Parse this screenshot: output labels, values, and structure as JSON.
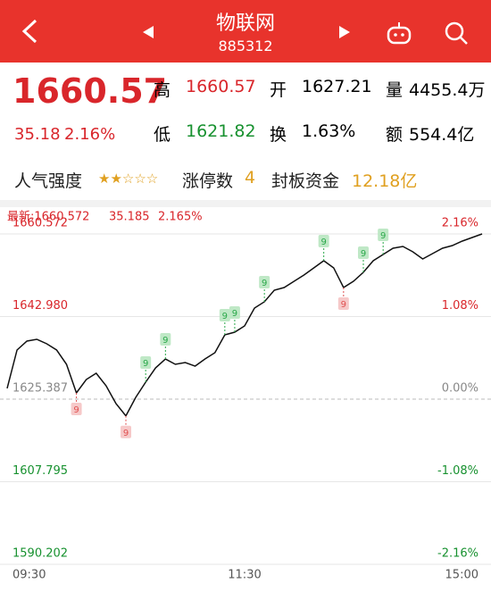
{
  "header": {
    "title": "物联网",
    "code": "885312"
  },
  "quote": {
    "price": "1660.57",
    "change": "35.18",
    "change_pct": "2.16%",
    "fields": [
      {
        "label": "高",
        "value": "1660.57"
      },
      {
        "label": "开",
        "value": "1627.21"
      },
      {
        "label": "量",
        "value": "4455.4万"
      },
      {
        "label": "低",
        "value": "1621.82"
      },
      {
        "label": "换",
        "value": "1.63%"
      },
      {
        "label": "额",
        "value": "554.4亿"
      }
    ]
  },
  "stats": {
    "popularity_label": "人气强度",
    "stars": "★★☆☆☆",
    "limit_up_label": "涨停数",
    "limit_up": "4",
    "seal_label": "封板资金",
    "seal": "12.18亿"
  },
  "chart_data": {
    "type": "line",
    "latest": {
      "label": "最新:1660.572",
      "change": "35.185",
      "pct": "2.165%"
    },
    "categories": [
      "09:30",
      null,
      null,
      null,
      null,
      null,
      null,
      null,
      null,
      null,
      null,
      null,
      null,
      null,
      null,
      null,
      null,
      null,
      null,
      null,
      null,
      null,
      null,
      null,
      "11:30",
      null,
      null,
      null,
      null,
      null,
      null,
      null,
      null,
      null,
      null,
      null,
      null,
      null,
      null,
      null,
      null,
      null,
      null,
      null,
      null,
      null,
      null,
      null,
      "15:00"
    ],
    "series": [
      {
        "name": "物联网",
        "color": "#111111",
        "values": [
          1627.67,
          1635.85,
          1637.75,
          1638.13,
          1637.18,
          1635.85,
          1632.8,
          1626.72,
          1629.57,
          1630.9,
          1628.24,
          1624.44,
          1621.82,
          1625.77,
          1629.0,
          1632.04,
          1633.94,
          1632.8,
          1633.18,
          1632.42,
          1633.94,
          1635.28,
          1639.08,
          1639.65,
          1640.98,
          1644.79,
          1646.12,
          1648.59,
          1649.16,
          1650.49,
          1651.82,
          1653.35,
          1654.87,
          1653.35,
          1649.16,
          1650.49,
          1652.39,
          1654.87,
          1656.2,
          1657.53,
          1657.91,
          1656.77,
          1655.25,
          1656.39,
          1657.53,
          1658.1,
          1659.05,
          1659.81,
          1660.57
        ]
      }
    ],
    "ylim": [
      1590.202,
      1660.572
    ],
    "yticks": [
      1590.202,
      1607.795,
      {
        "value": 1625.387,
        "label": "1625.387"
      },
      {
        "value": 1642.98,
        "label": "1642.980"
      },
      1660.572
    ],
    "y2lim": [
      -2.16,
      2.16
    ],
    "y2ticks": [
      {
        "value": -2.16,
        "label": "-2.16%"
      },
      {
        "value": -1.08,
        "label": "-1.08%"
      },
      {
        "value": 0,
        "label": "0.00%"
      },
      {
        "value": 1.08,
        "label": "1.08%"
      },
      {
        "value": 2.16,
        "label": "2.16%"
      }
    ],
    "annotations": [
      {
        "at": 7,
        "text": "9",
        "color": "#e05050"
      },
      {
        "at": 12,
        "text": "9",
        "color": "#e05050"
      },
      {
        "at": 14,
        "text": "9",
        "color": "#2aa84a"
      },
      {
        "at": 16,
        "text": "9",
        "color": "#2aa84a"
      },
      {
        "at": 22,
        "text": "9",
        "color": "#2aa84a"
      },
      {
        "at": 23,
        "text": "9",
        "color": "#2aa84a"
      },
      {
        "at": 26,
        "text": "9",
        "color": "#2aa84a"
      },
      {
        "at": 32,
        "text": "9",
        "color": "#2aa84a"
      },
      {
        "at": 34,
        "text": "9",
        "color": "#e05050"
      },
      {
        "at": 36,
        "text": "9",
        "color": "#2aa84a"
      },
      {
        "at": 38,
        "text": "9",
        "color": "#2aa84a"
      }
    ]
  }
}
